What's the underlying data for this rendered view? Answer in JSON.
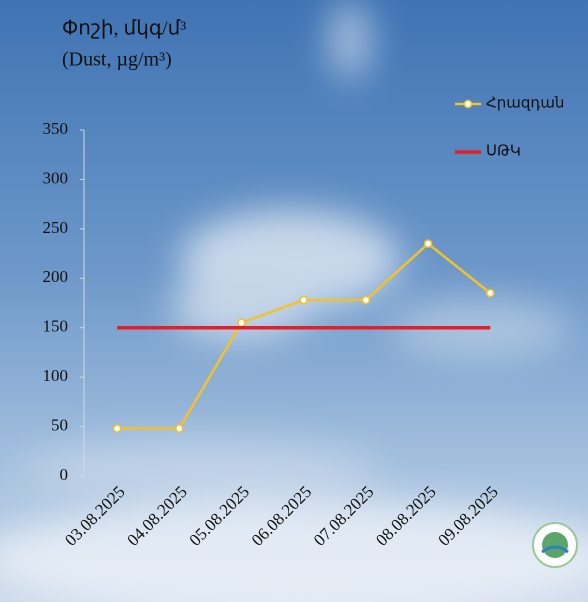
{
  "chart_data": {
    "type": "line",
    "title": "Փոշի, մկգ/մ³",
    "subtitle": "(Dust, µg/m³)",
    "categories": [
      "03.08.2025",
      "04.08.2025",
      "05.08.2025",
      "06.08.2025",
      "07.08.2025",
      "08.08.2025",
      "09.08.2025"
    ],
    "series": [
      {
        "name": "Հրազդան",
        "color": "#f2c12e",
        "values": [
          48,
          48,
          155,
          178,
          178,
          235,
          185
        ],
        "markers": true
      },
      {
        "name": "ՍԹԿ",
        "color": "#e0202a",
        "values": [
          150,
          150,
          150,
          150,
          150,
          150,
          150
        ],
        "markers": false
      }
    ],
    "ylim": [
      0,
      350
    ],
    "yticks": [
      0,
      50,
      100,
      150,
      200,
      250,
      300,
      350
    ],
    "grid": false
  }
}
